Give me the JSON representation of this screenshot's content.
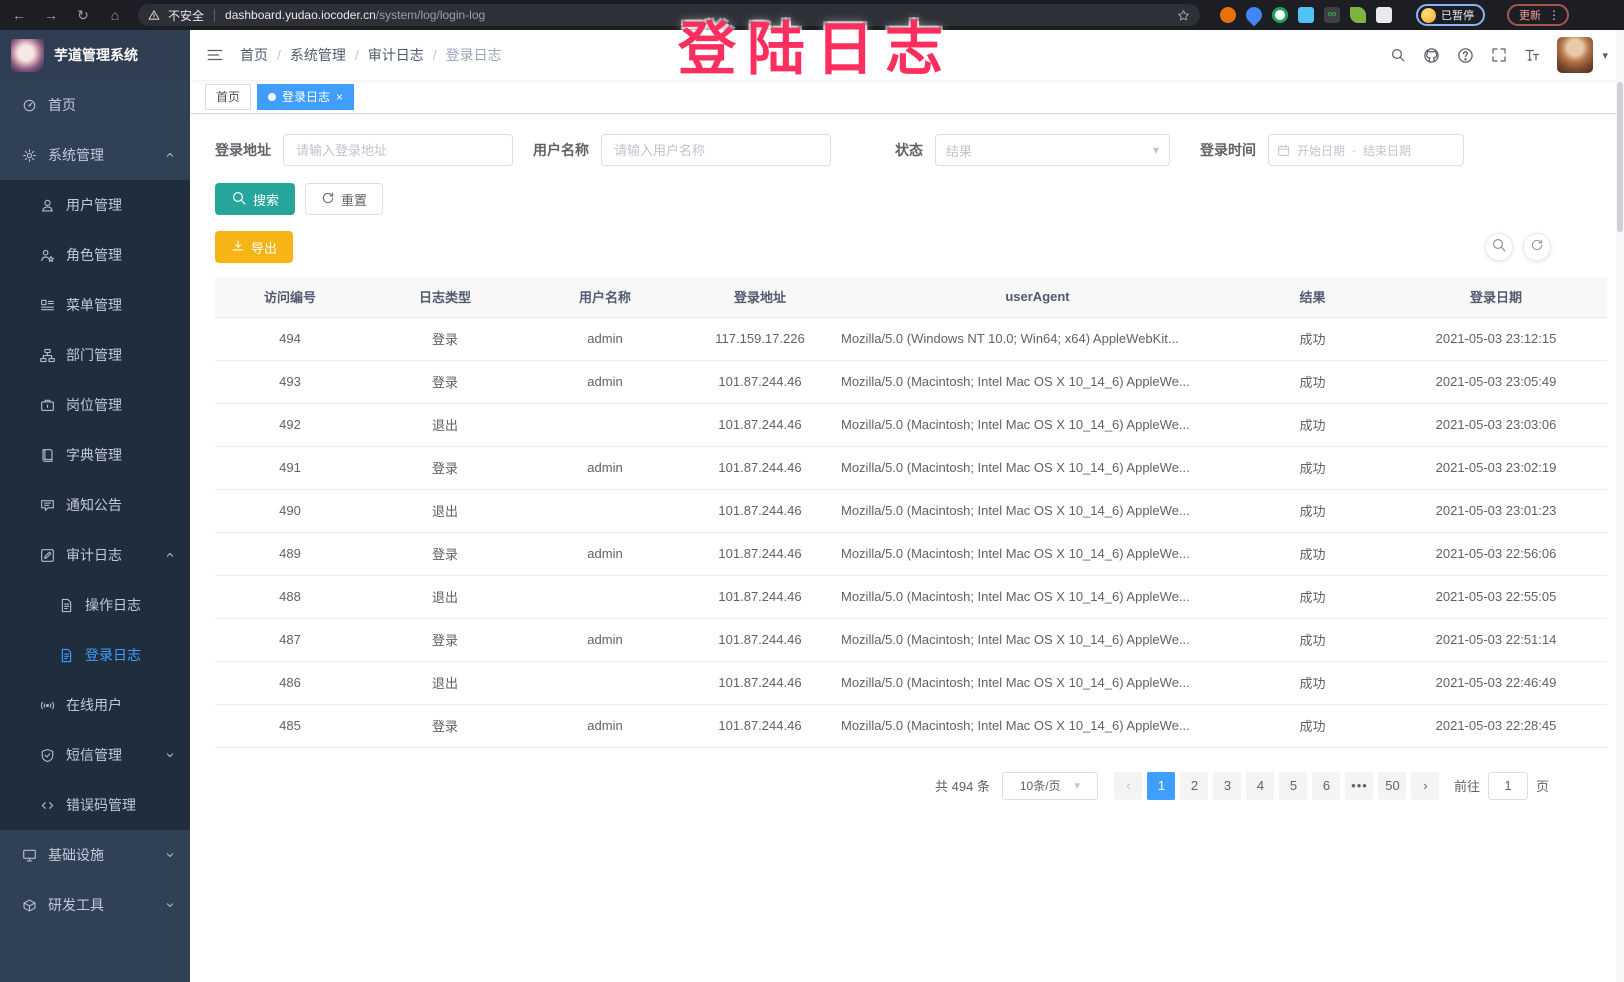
{
  "browser": {
    "security_label": "不安全",
    "url_host": "dashboard.yudao.iocoder.cn",
    "url_path": "/system/log/login-log",
    "profile_badge": "已暂停",
    "update_label": "更新",
    "extensions": [
      {
        "name": "ext-orange-circle",
        "shape": "circle",
        "color": "#E8710A"
      },
      {
        "name": "ext-blue-pin",
        "shape": "pin",
        "color": "#4285F4"
      },
      {
        "name": "ext-green-circle",
        "shape": "circle-ring",
        "color": "#1EA362"
      },
      {
        "name": "ext-blue-doc",
        "shape": "square",
        "color": "#4FC3F7"
      },
      {
        "name": "ext-dark-on-badge",
        "shape": "square",
        "color": "#3C4043",
        "label": "on",
        "label_color": "#34A853"
      },
      {
        "name": "ext-green-leaf",
        "shape": "leaf",
        "color": "#7CB342"
      },
      {
        "name": "ext-white-puzzle",
        "shape": "puzzle",
        "color": "#E8EAED"
      }
    ]
  },
  "overlay": {
    "text": "登陆日志",
    "color": "#FB2E5E"
  },
  "app": {
    "title": "芋道管理系统"
  },
  "sidebar": {
    "items": [
      {
        "id": "home",
        "label": "首页",
        "icon": "home",
        "level": 1
      },
      {
        "id": "system",
        "label": "系统管理",
        "icon": "gear",
        "level": 1,
        "chevron": "up"
      },
      {
        "id": "user",
        "label": "用户管理",
        "icon": "user",
        "level": 2
      },
      {
        "id": "role",
        "label": "角色管理",
        "icon": "role",
        "level": 2
      },
      {
        "id": "menu",
        "label": "菜单管理",
        "icon": "menu",
        "level": 2
      },
      {
        "id": "dept",
        "label": "部门管理",
        "icon": "tree",
        "level": 2
      },
      {
        "id": "post",
        "label": "岗位管理",
        "icon": "post",
        "level": 2
      },
      {
        "id": "dict",
        "label": "字典管理",
        "icon": "dict",
        "level": 2
      },
      {
        "id": "notice",
        "label": "通知公告",
        "icon": "notice",
        "level": 2
      },
      {
        "id": "audit",
        "label": "审计日志",
        "icon": "audit",
        "level": 2,
        "chevron": "up"
      },
      {
        "id": "operate-log",
        "label": "操作日志",
        "icon": "doc",
        "level": 3
      },
      {
        "id": "login-log",
        "label": "登录日志",
        "icon": "doc",
        "level": 3,
        "active": true
      },
      {
        "id": "online-user",
        "label": "在线用户",
        "icon": "online",
        "level": 2
      },
      {
        "id": "sms",
        "label": "短信管理",
        "icon": "sms",
        "level": 2,
        "chevron": "down"
      },
      {
        "id": "error-code",
        "label": "错误码管理",
        "icon": "errcode",
        "level": 2
      },
      {
        "id": "infra",
        "label": "基础设施",
        "icon": "infra",
        "level": 1,
        "chevron": "down"
      },
      {
        "id": "dev-tools",
        "label": "研发工具",
        "icon": "tools",
        "level": 1,
        "chevron": "down"
      }
    ]
  },
  "header": {
    "breadcrumb": [
      "首页",
      "系统管理",
      "审计日志",
      "登录日志"
    ]
  },
  "tabs": [
    {
      "label": "首页",
      "active": false,
      "closable": false
    },
    {
      "label": "登录日志",
      "active": true,
      "closable": true
    }
  ],
  "filters": {
    "login_address": {
      "label": "登录地址",
      "placeholder": "请输入登录地址"
    },
    "username": {
      "label": "用户名称",
      "placeholder": "请输入用户名称"
    },
    "status": {
      "label": "状态",
      "placeholder": "结果"
    },
    "login_time": {
      "label": "登录时间",
      "start_placeholder": "开始日期",
      "separator": "-",
      "end_placeholder": "结束日期"
    }
  },
  "actions": {
    "search": "搜索",
    "reset": "重置",
    "export": "导出"
  },
  "table": {
    "headers": [
      "访问编号",
      "日志类型",
      "用户名称",
      "登录地址",
      "userAgent",
      "结果",
      "登录日期"
    ],
    "rows": [
      [
        "494",
        "登录",
        "admin",
        "117.159.17.226",
        "Mozilla/5.0 (Windows NT 10.0; Win64; x64) AppleWebKit...",
        "成功",
        "2021-05-03 23:12:15"
      ],
      [
        "493",
        "登录",
        "admin",
        "101.87.244.46",
        "Mozilla/5.0 (Macintosh; Intel Mac OS X 10_14_6) AppleWe...",
        "成功",
        "2021-05-03 23:05:49"
      ],
      [
        "492",
        "退出",
        "",
        "101.87.244.46",
        "Mozilla/5.0 (Macintosh; Intel Mac OS X 10_14_6) AppleWe...",
        "成功",
        "2021-05-03 23:03:06"
      ],
      [
        "491",
        "登录",
        "admin",
        "101.87.244.46",
        "Mozilla/5.0 (Macintosh; Intel Mac OS X 10_14_6) AppleWe...",
        "成功",
        "2021-05-03 23:02:19"
      ],
      [
        "490",
        "退出",
        "",
        "101.87.244.46",
        "Mozilla/5.0 (Macintosh; Intel Mac OS X 10_14_6) AppleWe...",
        "成功",
        "2021-05-03 23:01:23"
      ],
      [
        "489",
        "登录",
        "admin",
        "101.87.244.46",
        "Mozilla/5.0 (Macintosh; Intel Mac OS X 10_14_6) AppleWe...",
        "成功",
        "2021-05-03 22:56:06"
      ],
      [
        "488",
        "退出",
        "",
        "101.87.244.46",
        "Mozilla/5.0 (Macintosh; Intel Mac OS X 10_14_6) AppleWe...",
        "成功",
        "2021-05-03 22:55:05"
      ],
      [
        "487",
        "登录",
        "admin",
        "101.87.244.46",
        "Mozilla/5.0 (Macintosh; Intel Mac OS X 10_14_6) AppleWe...",
        "成功",
        "2021-05-03 22:51:14"
      ],
      [
        "486",
        "退出",
        "",
        "101.87.244.46",
        "Mozilla/5.0 (Macintosh; Intel Mac OS X 10_14_6) AppleWe...",
        "成功",
        "2021-05-03 22:46:49"
      ],
      [
        "485",
        "登录",
        "admin",
        "101.87.244.46",
        "Mozilla/5.0 (Macintosh; Intel Mac OS X 10_14_6) AppleWe...",
        "成功",
        "2021-05-03 22:28:45"
      ]
    ]
  },
  "pagination": {
    "total": "共 494 条",
    "page_size": "10条/页",
    "pages": [
      "1",
      "2",
      "3",
      "4",
      "5",
      "6",
      "•••",
      "50"
    ],
    "active_page": "1",
    "goto_label": "前往",
    "goto_value": "1",
    "goto_suffix": "页"
  },
  "colors": {
    "accent": "#409EFF",
    "search_button": "#26A69A",
    "export_button": "#F7B515",
    "sidebar_bg": "#304156",
    "submenu_bg": "#1F2D3D",
    "overlay_pink": "#FB2E5E"
  }
}
